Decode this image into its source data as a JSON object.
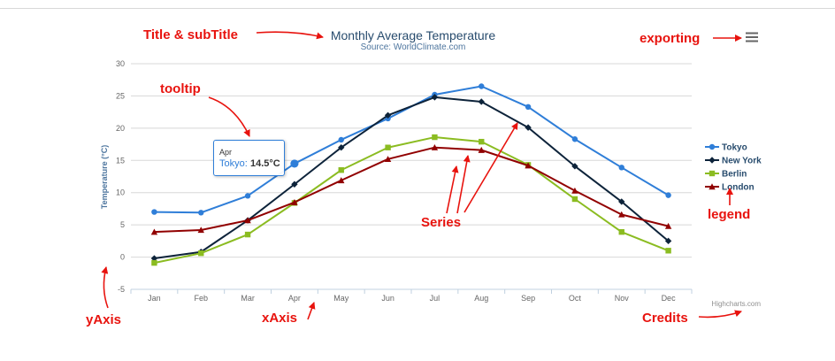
{
  "annotations": {
    "title_subtitle": "Title & subTitle",
    "exporting": "exporting",
    "tooltip": "tooltip",
    "series": "Series",
    "legend": "legend",
    "y_axis": "yAxis",
    "x_axis": "xAxis",
    "credits": "Credits",
    "color": "#e8130e"
  },
  "chart_data": {
    "type": "line",
    "title": "Monthly Average Temperature",
    "subtitle": "Source: WorldClimate.com",
    "xlabel": "",
    "ylabel": "Temperature (°C)",
    "ylim": [
      -5,
      30
    ],
    "yticks": [
      "-5",
      "0",
      "5",
      "10",
      "15",
      "20",
      "25",
      "30"
    ],
    "grid": true,
    "legend_position": "right",
    "categories": [
      "Jan",
      "Feb",
      "Mar",
      "Apr",
      "May",
      "Jun",
      "Jul",
      "Aug",
      "Sep",
      "Oct",
      "Nov",
      "Dec"
    ],
    "series": [
      {
        "name": "Tokyo",
        "color": "#2f7ed8",
        "marker": "circle",
        "values": [
          7.0,
          6.9,
          9.5,
          14.5,
          18.2,
          21.5,
          25.2,
          26.5,
          23.3,
          18.3,
          13.9,
          9.6
        ]
      },
      {
        "name": "New York",
        "color": "#0d233a",
        "marker": "diamond",
        "values": [
          -0.2,
          0.8,
          5.7,
          11.3,
          17.0,
          22.0,
          24.8,
          24.1,
          20.1,
          14.1,
          8.6,
          2.5
        ]
      },
      {
        "name": "Berlin",
        "color": "#8bbc21",
        "marker": "square",
        "values": [
          -0.9,
          0.6,
          3.5,
          8.4,
          13.5,
          17.0,
          18.6,
          17.9,
          14.3,
          9.0,
          3.9,
          1.0
        ]
      },
      {
        "name": "London",
        "color": "#910000",
        "marker": "triangle",
        "values": [
          3.9,
          4.2,
          5.7,
          8.5,
          11.9,
          15.2,
          17.0,
          16.6,
          14.2,
          10.3,
          6.6,
          4.8
        ]
      }
    ],
    "tooltip": {
      "x": "Apr",
      "series": "Tokyo",
      "value": "14.5°C"
    },
    "credits": "Highcharts.com",
    "exporting_icon": "menu-icon"
  }
}
